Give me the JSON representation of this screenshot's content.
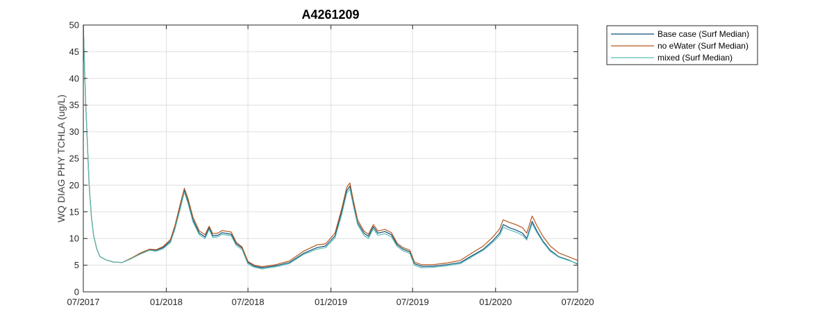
{
  "chart_data": {
    "type": "line",
    "title": "A4261209",
    "xlabel": "",
    "ylabel": "WQ DIAG PHY TCHLA (ug/L)",
    "xlim": [
      "2017-07-01",
      "2020-07-01"
    ],
    "ylim": [
      0,
      50
    ],
    "grid": true,
    "legend_position": "outside-top-right",
    "x_ticks": [
      {
        "date": "2017-07-01",
        "label": "07/2017"
      },
      {
        "date": "2018-01-01",
        "label": "01/2018"
      },
      {
        "date": "2018-07-01",
        "label": "07/2018"
      },
      {
        "date": "2019-01-01",
        "label": "01/2019"
      },
      {
        "date": "2019-07-01",
        "label": "07/2019"
      },
      {
        "date": "2020-01-01",
        "label": "01/2020"
      },
      {
        "date": "2020-07-01",
        "label": "07/2020"
      }
    ],
    "y_ticks": [
      0,
      5,
      10,
      15,
      20,
      25,
      30,
      35,
      40,
      45,
      50
    ],
    "series": [
      {
        "name": "Base case (Surf Median)",
        "color": "#0b4f7c",
        "points": [
          [
            "2017-07-01",
            50
          ],
          [
            "2017-07-03",
            44
          ],
          [
            "2017-07-06",
            36
          ],
          [
            "2017-07-10",
            28
          ],
          [
            "2017-07-14",
            20
          ],
          [
            "2017-07-19",
            14
          ],
          [
            "2017-07-24",
            10.5
          ],
          [
            "2017-07-31",
            8
          ],
          [
            "2017-08-07",
            6.6
          ],
          [
            "2017-08-20",
            6.0
          ],
          [
            "2017-09-05",
            5.6
          ],
          [
            "2017-09-25",
            5.5
          ],
          [
            "2017-10-15",
            6.3
          ],
          [
            "2017-11-05",
            7.2
          ],
          [
            "2017-11-25",
            7.9
          ],
          [
            "2017-12-10",
            7.8
          ],
          [
            "2017-12-25",
            8.3
          ],
          [
            "2018-01-10",
            9.5
          ],
          [
            "2018-01-20",
            12.0
          ],
          [
            "2018-02-01",
            16.0
          ],
          [
            "2018-02-10",
            19.0
          ],
          [
            "2018-02-18",
            17.0
          ],
          [
            "2018-03-01",
            13.5
          ],
          [
            "2018-03-15",
            11.0
          ],
          [
            "2018-03-28",
            10.3
          ],
          [
            "2018-04-06",
            12.0
          ],
          [
            "2018-04-14",
            10.5
          ],
          [
            "2018-04-25",
            10.6
          ],
          [
            "2018-05-05",
            11.1
          ],
          [
            "2018-05-25",
            10.8
          ],
          [
            "2018-06-05",
            9.0
          ],
          [
            "2018-06-18",
            8.2
          ],
          [
            "2018-07-01",
            5.5
          ],
          [
            "2018-07-15",
            4.8
          ],
          [
            "2018-08-01",
            4.5
          ],
          [
            "2018-09-01",
            4.9
          ],
          [
            "2018-10-01",
            5.5
          ],
          [
            "2018-11-01",
            7.2
          ],
          [
            "2018-12-01",
            8.3
          ],
          [
            "2018-12-20",
            8.6
          ],
          [
            "2019-01-10",
            10.5
          ],
          [
            "2019-01-25",
            15.0
          ],
          [
            "2019-02-05",
            19.0
          ],
          [
            "2019-02-12",
            19.8
          ],
          [
            "2019-02-20",
            16.5
          ],
          [
            "2019-03-01",
            13.0
          ],
          [
            "2019-03-15",
            11.0
          ],
          [
            "2019-03-25",
            10.4
          ],
          [
            "2019-04-05",
            12.2
          ],
          [
            "2019-04-15",
            11.0
          ],
          [
            "2019-05-01",
            11.3
          ],
          [
            "2019-05-15",
            10.7
          ],
          [
            "2019-05-28",
            8.8
          ],
          [
            "2019-06-10",
            8.0
          ],
          [
            "2019-06-25",
            7.5
          ],
          [
            "2019-07-05",
            5.3
          ],
          [
            "2019-07-20",
            4.8
          ],
          [
            "2019-08-15",
            4.8
          ],
          [
            "2019-09-15",
            5.1
          ],
          [
            "2019-10-15",
            5.5
          ],
          [
            "2019-11-10",
            6.8
          ],
          [
            "2019-12-05",
            8.0
          ],
          [
            "2019-12-25",
            9.5
          ],
          [
            "2020-01-10",
            11.0
          ],
          [
            "2020-01-18",
            12.6
          ],
          [
            "2020-02-01",
            12.0
          ],
          [
            "2020-02-15",
            11.6
          ],
          [
            "2020-03-01",
            11.0
          ],
          [
            "2020-03-10",
            10.0
          ],
          [
            "2020-03-22",
            13.2
          ],
          [
            "2020-04-01",
            11.5
          ],
          [
            "2020-04-15",
            9.5
          ],
          [
            "2020-05-01",
            7.8
          ],
          [
            "2020-05-20",
            6.6
          ],
          [
            "2020-06-10",
            6.0
          ],
          [
            "2020-07-01",
            5.2
          ]
        ]
      },
      {
        "name": "no eWater (Surf Median)",
        "color": "#b5561a",
        "points": [
          [
            "2017-07-01",
            50
          ],
          [
            "2017-07-03",
            44
          ],
          [
            "2017-07-06",
            36
          ],
          [
            "2017-07-10",
            28
          ],
          [
            "2017-07-14",
            20
          ],
          [
            "2017-07-19",
            14
          ],
          [
            "2017-07-24",
            10.5
          ],
          [
            "2017-07-31",
            8
          ],
          [
            "2017-08-07",
            6.6
          ],
          [
            "2017-08-20",
            6.0
          ],
          [
            "2017-09-05",
            5.6
          ],
          [
            "2017-09-25",
            5.5
          ],
          [
            "2017-10-15",
            6.3
          ],
          [
            "2017-11-05",
            7.3
          ],
          [
            "2017-11-25",
            8.0
          ],
          [
            "2017-12-10",
            7.9
          ],
          [
            "2017-12-25",
            8.5
          ],
          [
            "2018-01-10",
            9.8
          ],
          [
            "2018-01-20",
            12.4
          ],
          [
            "2018-02-01",
            16.5
          ],
          [
            "2018-02-10",
            19.4
          ],
          [
            "2018-02-18",
            17.5
          ],
          [
            "2018-03-01",
            14.0
          ],
          [
            "2018-03-15",
            11.4
          ],
          [
            "2018-03-28",
            10.7
          ],
          [
            "2018-04-06",
            12.3
          ],
          [
            "2018-04-14",
            10.9
          ],
          [
            "2018-04-25",
            11.0
          ],
          [
            "2018-05-05",
            11.5
          ],
          [
            "2018-05-25",
            11.2
          ],
          [
            "2018-06-05",
            9.3
          ],
          [
            "2018-06-18",
            8.4
          ],
          [
            "2018-07-01",
            5.7
          ],
          [
            "2018-07-15",
            5.0
          ],
          [
            "2018-08-01",
            4.7
          ],
          [
            "2018-09-01",
            5.1
          ],
          [
            "2018-10-01",
            5.8
          ],
          [
            "2018-11-01",
            7.6
          ],
          [
            "2018-12-01",
            8.8
          ],
          [
            "2018-12-20",
            9.0
          ],
          [
            "2019-01-10",
            11.0
          ],
          [
            "2019-01-25",
            15.6
          ],
          [
            "2019-02-05",
            19.6
          ],
          [
            "2019-02-12",
            20.4
          ],
          [
            "2019-02-20",
            17.0
          ],
          [
            "2019-03-01",
            13.5
          ],
          [
            "2019-03-15",
            11.4
          ],
          [
            "2019-03-25",
            10.8
          ],
          [
            "2019-04-05",
            12.6
          ],
          [
            "2019-04-15",
            11.4
          ],
          [
            "2019-05-01",
            11.7
          ],
          [
            "2019-05-15",
            11.1
          ],
          [
            "2019-05-28",
            9.1
          ],
          [
            "2019-06-10",
            8.3
          ],
          [
            "2019-06-25",
            7.8
          ],
          [
            "2019-07-05",
            5.6
          ],
          [
            "2019-07-20",
            5.1
          ],
          [
            "2019-08-15",
            5.1
          ],
          [
            "2019-09-15",
            5.4
          ],
          [
            "2019-10-15",
            5.9
          ],
          [
            "2019-11-10",
            7.3
          ],
          [
            "2019-12-05",
            8.6
          ],
          [
            "2019-12-25",
            10.2
          ],
          [
            "2020-01-10",
            11.8
          ],
          [
            "2020-01-18",
            13.5
          ],
          [
            "2020-02-01",
            13.0
          ],
          [
            "2020-02-15",
            12.6
          ],
          [
            "2020-03-01",
            12.0
          ],
          [
            "2020-03-10",
            11.0
          ],
          [
            "2020-03-22",
            14.2
          ],
          [
            "2020-04-01",
            12.5
          ],
          [
            "2020-04-15",
            10.4
          ],
          [
            "2020-05-01",
            8.6
          ],
          [
            "2020-05-20",
            7.3
          ],
          [
            "2020-06-10",
            6.6
          ],
          [
            "2020-07-01",
            5.9
          ]
        ]
      },
      {
        "name": "mixed (Surf Median)",
        "color": "#5bbcb8",
        "points": [
          [
            "2017-07-01",
            50
          ],
          [
            "2017-07-03",
            44
          ],
          [
            "2017-07-06",
            36
          ],
          [
            "2017-07-10",
            28
          ],
          [
            "2017-07-14",
            20
          ],
          [
            "2017-07-19",
            14
          ],
          [
            "2017-07-24",
            10.5
          ],
          [
            "2017-07-31",
            8
          ],
          [
            "2017-08-07",
            6.6
          ],
          [
            "2017-08-20",
            6.0
          ],
          [
            "2017-09-05",
            5.6
          ],
          [
            "2017-09-25",
            5.5
          ],
          [
            "2017-10-15",
            6.2
          ],
          [
            "2017-11-05",
            7.1
          ],
          [
            "2017-11-25",
            7.8
          ],
          [
            "2017-12-10",
            7.6
          ],
          [
            "2017-12-25",
            8.1
          ],
          [
            "2018-01-10",
            9.2
          ],
          [
            "2018-01-20",
            11.7
          ],
          [
            "2018-02-01",
            15.6
          ],
          [
            "2018-02-10",
            18.7
          ],
          [
            "2018-02-18",
            16.6
          ],
          [
            "2018-03-01",
            13.1
          ],
          [
            "2018-03-15",
            10.7
          ],
          [
            "2018-03-28",
            10.0
          ],
          [
            "2018-04-06",
            11.7
          ],
          [
            "2018-04-14",
            10.2
          ],
          [
            "2018-04-25",
            10.3
          ],
          [
            "2018-05-05",
            10.8
          ],
          [
            "2018-05-25",
            10.5
          ],
          [
            "2018-06-05",
            8.7
          ],
          [
            "2018-06-18",
            7.9
          ],
          [
            "2018-07-01",
            5.2
          ],
          [
            "2018-07-15",
            4.6
          ],
          [
            "2018-08-01",
            4.3
          ],
          [
            "2018-09-01",
            4.7
          ],
          [
            "2018-10-01",
            5.3
          ],
          [
            "2018-11-01",
            7.0
          ],
          [
            "2018-12-01",
            8.0
          ],
          [
            "2018-12-20",
            8.3
          ],
          [
            "2019-01-10",
            10.1
          ],
          [
            "2019-01-25",
            14.5
          ],
          [
            "2019-02-05",
            18.5
          ],
          [
            "2019-02-12",
            19.3
          ],
          [
            "2019-02-20",
            16.0
          ],
          [
            "2019-03-01",
            12.6
          ],
          [
            "2019-03-15",
            10.6
          ],
          [
            "2019-03-25",
            10.0
          ],
          [
            "2019-04-05",
            11.8
          ],
          [
            "2019-04-15",
            10.6
          ],
          [
            "2019-05-01",
            10.9
          ],
          [
            "2019-05-15",
            10.3
          ],
          [
            "2019-05-28",
            8.5
          ],
          [
            "2019-06-10",
            7.7
          ],
          [
            "2019-06-25",
            7.2
          ],
          [
            "2019-07-05",
            5.0
          ],
          [
            "2019-07-20",
            4.5
          ],
          [
            "2019-08-15",
            4.6
          ],
          [
            "2019-09-15",
            4.9
          ],
          [
            "2019-10-15",
            5.3
          ],
          [
            "2019-11-10",
            6.6
          ],
          [
            "2019-12-05",
            7.8
          ],
          [
            "2019-12-25",
            9.2
          ],
          [
            "2020-01-10",
            10.6
          ],
          [
            "2020-01-18",
            12.1
          ],
          [
            "2020-02-01",
            11.6
          ],
          [
            "2020-02-15",
            11.2
          ],
          [
            "2020-03-01",
            10.6
          ],
          [
            "2020-03-10",
            9.7
          ],
          [
            "2020-03-22",
            12.8
          ],
          [
            "2020-04-01",
            11.2
          ],
          [
            "2020-04-15",
            9.3
          ],
          [
            "2020-05-01",
            7.6
          ],
          [
            "2020-05-20",
            6.5
          ],
          [
            "2020-06-10",
            5.9
          ],
          [
            "2020-07-01",
            5.3
          ]
        ]
      }
    ]
  }
}
